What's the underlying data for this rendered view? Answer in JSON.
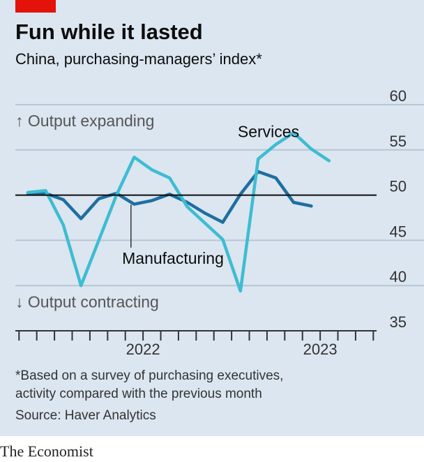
{
  "header": {
    "title": "Fun while it lasted",
    "subtitle": "China, purchasing-managers’ index*"
  },
  "footer": {
    "note_line1": "*Based on a survey of purchasing executives,",
    "note_line2": "activity compared with the previous month",
    "source": "Source: Haver Analytics",
    "brand": "The Economist"
  },
  "colors": {
    "background": "#dbe6f0",
    "accent": "#e3120b",
    "services": "#3ebcd2",
    "manufacturing": "#1f6ea0",
    "grid": "#b7c6d3",
    "baseline": "#0c0c0c"
  },
  "chart_data": {
    "type": "line",
    "ylim": [
      35,
      60
    ],
    "yticks": [
      35,
      40,
      45,
      50,
      55,
      60
    ],
    "baseline": 50,
    "grid": true,
    "xlim": [
      0,
      20
    ],
    "x": [
      0,
      1,
      2,
      3,
      4,
      5,
      6,
      7,
      8,
      9,
      10,
      11,
      12,
      13,
      14,
      15,
      16,
      17,
      18
    ],
    "xtick_positions": [
      -0.5,
      0.5,
      1.5,
      2.5,
      3.5,
      4.5,
      5.5,
      6.5,
      7.5,
      8.5,
      9.5,
      10.5,
      11.5,
      12.5,
      13.5,
      14.5,
      15.5,
      16.5,
      17.5,
      18.5,
      19.5
    ],
    "xtick_labels": [
      {
        "label": "2022",
        "x": 6.5
      },
      {
        "label": "2023",
        "x": 16.5
      }
    ],
    "annotations": {
      "expanding": "↑ Output expanding",
      "contracting": "↓ Output contracting"
    },
    "series": [
      {
        "name": "Services",
        "key": "services",
        "values": [
          50.3,
          50.5,
          46.7,
          40.0,
          45.0,
          50.0,
          54.2,
          52.8,
          51.9,
          48.7,
          46.9,
          45.1,
          39.4,
          54.0,
          55.6,
          56.9,
          55.1,
          53.8,
          null
        ]
      },
      {
        "name": "Manufacturing",
        "key": "manufacturing",
        "values": [
          50.2,
          50.2,
          49.5,
          47.4,
          49.6,
          50.2,
          49.0,
          49.4,
          50.1,
          49.2,
          48.0,
          47.0,
          50.1,
          52.6,
          51.9,
          49.2,
          48.8,
          null,
          null
        ]
      }
    ]
  }
}
